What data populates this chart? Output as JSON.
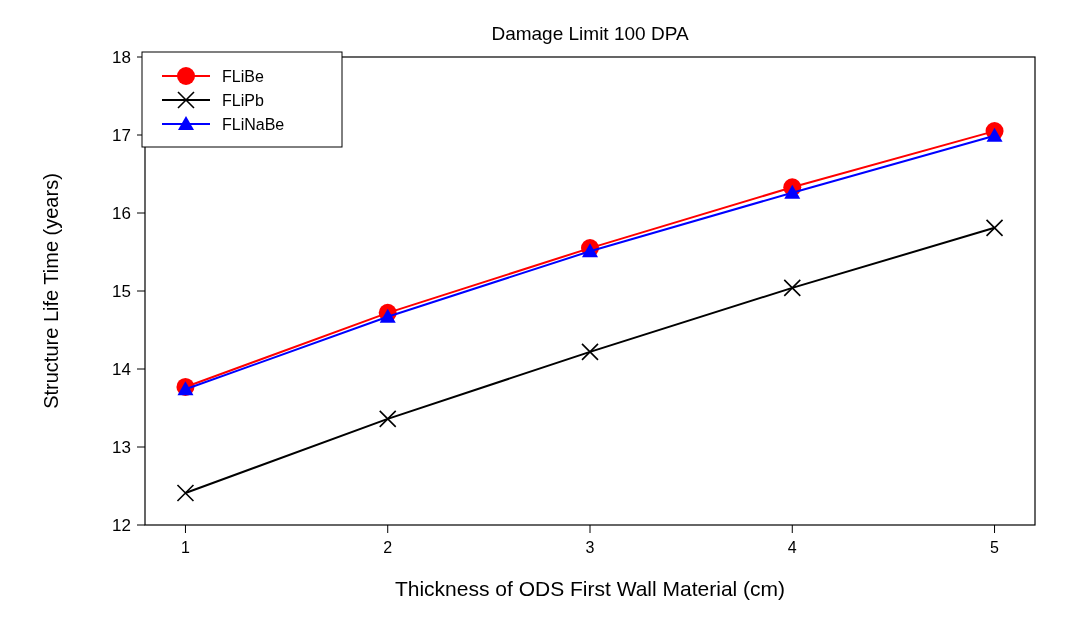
{
  "chart_data": {
    "type": "line",
    "title": "Damage Limit 100 DPA",
    "xlabel": "Thickness of ODS First Wall Material (cm)",
    "ylabel": "Structure Life Time (years)",
    "x": [
      1,
      2,
      3,
      4,
      5
    ],
    "xlim": [
      0.8,
      5.2
    ],
    "xticks": [
      1,
      2,
      3,
      4,
      5
    ],
    "ylim": [
      12,
      18
    ],
    "yticks": [
      12,
      13,
      14,
      15,
      16,
      17,
      18
    ],
    "grid": false,
    "legend": "top left",
    "series": [
      {
        "name": "FLiBe",
        "color": "#ff0000",
        "marker": "circle",
        "values": [
          13.77,
          14.72,
          15.55,
          16.33,
          17.05
        ]
      },
      {
        "name": "FLiPb",
        "color": "#000000",
        "marker": "cross",
        "values": [
          12.41,
          13.36,
          14.22,
          15.04,
          15.81
        ]
      },
      {
        "name": "FLiNaBe",
        "color": "#0000ff",
        "marker": "triangle",
        "values": [
          13.74,
          14.67,
          15.51,
          16.26,
          16.99
        ]
      }
    ]
  }
}
